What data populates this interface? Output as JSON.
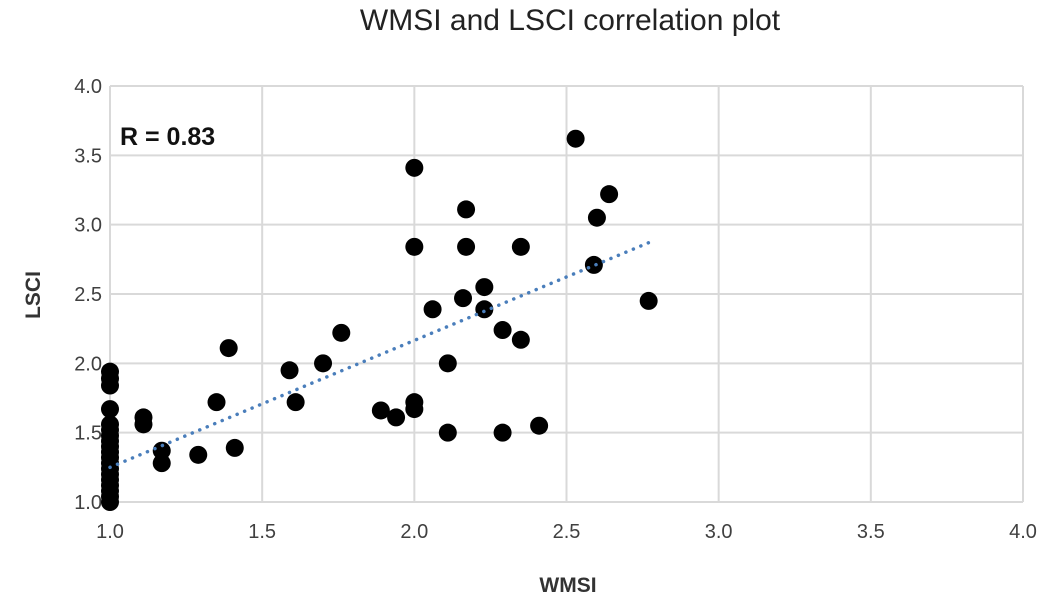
{
  "chart_data": {
    "type": "scatter",
    "title": "WMSI and LSCI correlation plot",
    "xlabel": "WMSI",
    "ylabel": "LSCI",
    "xlim": [
      1.0,
      4.0
    ],
    "ylim": [
      1.0,
      4.0
    ],
    "xticks": [
      "1.0",
      "1.5",
      "2.0",
      "2.5",
      "3.0",
      "3.5",
      "4.0"
    ],
    "yticks": [
      "1.0",
      "1.5",
      "2.0",
      "2.5",
      "3.0",
      "3.5",
      "4.0"
    ],
    "grid": true,
    "annotation": "R = 0.83",
    "marker_color": "#000000",
    "trendline": {
      "style": "dotted linear",
      "color": "#4a7ebb",
      "x": [
        1.0,
        2.77
      ],
      "y": [
        1.25,
        2.87
      ]
    },
    "points": [
      [
        2.53,
        3.62
      ],
      [
        2.0,
        3.41
      ],
      [
        2.64,
        3.22
      ],
      [
        2.17,
        3.11
      ],
      [
        2.6,
        3.05
      ],
      [
        2.0,
        2.84
      ],
      [
        2.17,
        2.84
      ],
      [
        2.35,
        2.84
      ],
      [
        2.59,
        2.71
      ],
      [
        2.23,
        2.55
      ],
      [
        2.06,
        2.39
      ],
      [
        2.16,
        2.47
      ],
      [
        2.23,
        2.39
      ],
      [
        2.77,
        2.45
      ],
      [
        2.29,
        2.24
      ],
      [
        2.35,
        2.17
      ],
      [
        1.76,
        2.22
      ],
      [
        1.39,
        2.11
      ],
      [
        2.11,
        2.0
      ],
      [
        1.7,
        2.0
      ],
      [
        1.59,
        1.95
      ],
      [
        2.0,
        1.72
      ],
      [
        2.0,
        1.67
      ],
      [
        1.89,
        1.66
      ],
      [
        1.94,
        1.61
      ],
      [
        1.61,
        1.72
      ],
      [
        1.35,
        1.72
      ],
      [
        1.11,
        1.61
      ],
      [
        1.11,
        1.56
      ],
      [
        2.11,
        1.5
      ],
      [
        2.29,
        1.5
      ],
      [
        2.41,
        1.55
      ],
      [
        1.17,
        1.37
      ],
      [
        1.17,
        1.28
      ],
      [
        1.29,
        1.34
      ],
      [
        1.41,
        1.39
      ],
      [
        1.0,
        1.94
      ],
      [
        1.0,
        1.89
      ],
      [
        1.0,
        1.84
      ],
      [
        1.0,
        1.67
      ],
      [
        1.0,
        1.56
      ],
      [
        1.0,
        1.52
      ],
      [
        1.0,
        1.48
      ],
      [
        1.0,
        1.44
      ],
      [
        1.0,
        1.4
      ],
      [
        1.0,
        1.36
      ],
      [
        1.0,
        1.32
      ],
      [
        1.0,
        1.28
      ],
      [
        1.0,
        1.24
      ],
      [
        1.0,
        1.2
      ],
      [
        1.0,
        1.16
      ],
      [
        1.0,
        1.12
      ],
      [
        1.0,
        1.08
      ],
      [
        1.0,
        1.04
      ],
      [
        1.0,
        1.0
      ]
    ]
  }
}
